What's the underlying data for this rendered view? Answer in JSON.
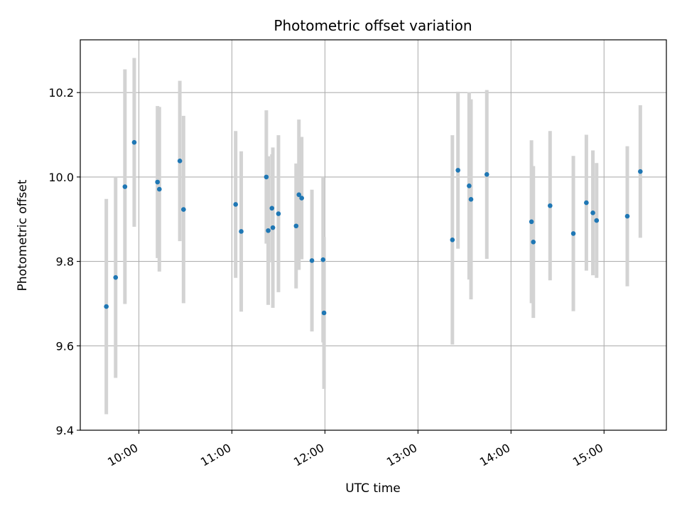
{
  "chart_data": {
    "type": "scatter",
    "title": "Photometric offset variation",
    "xlabel": "UTC time",
    "ylabel": "Photometric offset",
    "x_unit": "UTC hours (decimal)",
    "xlim": [
      9.37,
      15.67
    ],
    "ylim": [
      9.4,
      10.325
    ],
    "x_ticks": [
      {
        "value": 10,
        "label": "10:00"
      },
      {
        "value": 11,
        "label": "11:00"
      },
      {
        "value": 12,
        "label": "12:00"
      },
      {
        "value": 13,
        "label": "13:00"
      },
      {
        "value": 14,
        "label": "14:00"
      },
      {
        "value": 15,
        "label": "15:00"
      }
    ],
    "y_ticks": [
      {
        "value": 9.4,
        "label": "9.4"
      },
      {
        "value": 9.6,
        "label": "9.6"
      },
      {
        "value": 9.8,
        "label": "9.8"
      },
      {
        "value": 10.0,
        "label": "10.0"
      },
      {
        "value": 10.2,
        "label": "10.2"
      }
    ],
    "grid": true,
    "marker_color": "#1f77b4",
    "errorbar_color": "#d3d3d3",
    "series": [
      {
        "points": [
          {
            "x": 9.65,
            "y": 9.693,
            "err": 0.255
          },
          {
            "x": 9.75,
            "y": 9.762,
            "err": 0.238
          },
          {
            "x": 9.85,
            "y": 9.977,
            "err": 0.278
          },
          {
            "x": 9.95,
            "y": 10.082,
            "err": 0.2
          },
          {
            "x": 10.2,
            "y": 9.988,
            "err": 0.18
          },
          {
            "x": 10.22,
            "y": 9.971,
            "err": 0.195
          },
          {
            "x": 10.44,
            "y": 10.038,
            "err": 0.19
          },
          {
            "x": 10.48,
            "y": 9.923,
            "err": 0.222
          },
          {
            "x": 11.04,
            "y": 9.935,
            "err": 0.174
          },
          {
            "x": 11.1,
            "y": 9.871,
            "err": 0.19
          },
          {
            "x": 11.37,
            "y": 10.0,
            "err": 0.158
          },
          {
            "x": 11.39,
            "y": 9.873,
            "err": 0.176
          },
          {
            "x": 11.43,
            "y": 9.926,
            "err": 0.128
          },
          {
            "x": 11.44,
            "y": 9.88,
            "err": 0.19
          },
          {
            "x": 11.5,
            "y": 9.913,
            "err": 0.186
          },
          {
            "x": 11.69,
            "y": 9.884,
            "err": 0.148
          },
          {
            "x": 11.72,
            "y": 9.958,
            "err": 0.178
          },
          {
            "x": 11.75,
            "y": 9.95,
            "err": 0.145
          },
          {
            "x": 11.86,
            "y": 9.802,
            "err": 0.168
          },
          {
            "x": 11.98,
            "y": 9.804,
            "err": 0.196
          },
          {
            "x": 11.99,
            "y": 9.678,
            "err": 0.18
          },
          {
            "x": 13.37,
            "y": 9.851,
            "err": 0.248
          },
          {
            "x": 13.43,
            "y": 10.016,
            "err": 0.186
          },
          {
            "x": 13.55,
            "y": 9.979,
            "err": 0.222
          },
          {
            "x": 13.57,
            "y": 9.947,
            "err": 0.237
          },
          {
            "x": 13.74,
            "y": 10.006,
            "err": 0.2
          },
          {
            "x": 14.22,
            "y": 9.894,
            "err": 0.193
          },
          {
            "x": 14.24,
            "y": 9.846,
            "err": 0.18
          },
          {
            "x": 14.42,
            "y": 9.932,
            "err": 0.177
          },
          {
            "x": 14.67,
            "y": 9.866,
            "err": 0.184
          },
          {
            "x": 14.81,
            "y": 9.939,
            "err": 0.161
          },
          {
            "x": 14.88,
            "y": 9.915,
            "err": 0.148
          },
          {
            "x": 14.92,
            "y": 9.897,
            "err": 0.136
          },
          {
            "x": 15.25,
            "y": 9.907,
            "err": 0.166
          },
          {
            "x": 15.39,
            "y": 10.013,
            "err": 0.157
          }
        ]
      }
    ]
  }
}
